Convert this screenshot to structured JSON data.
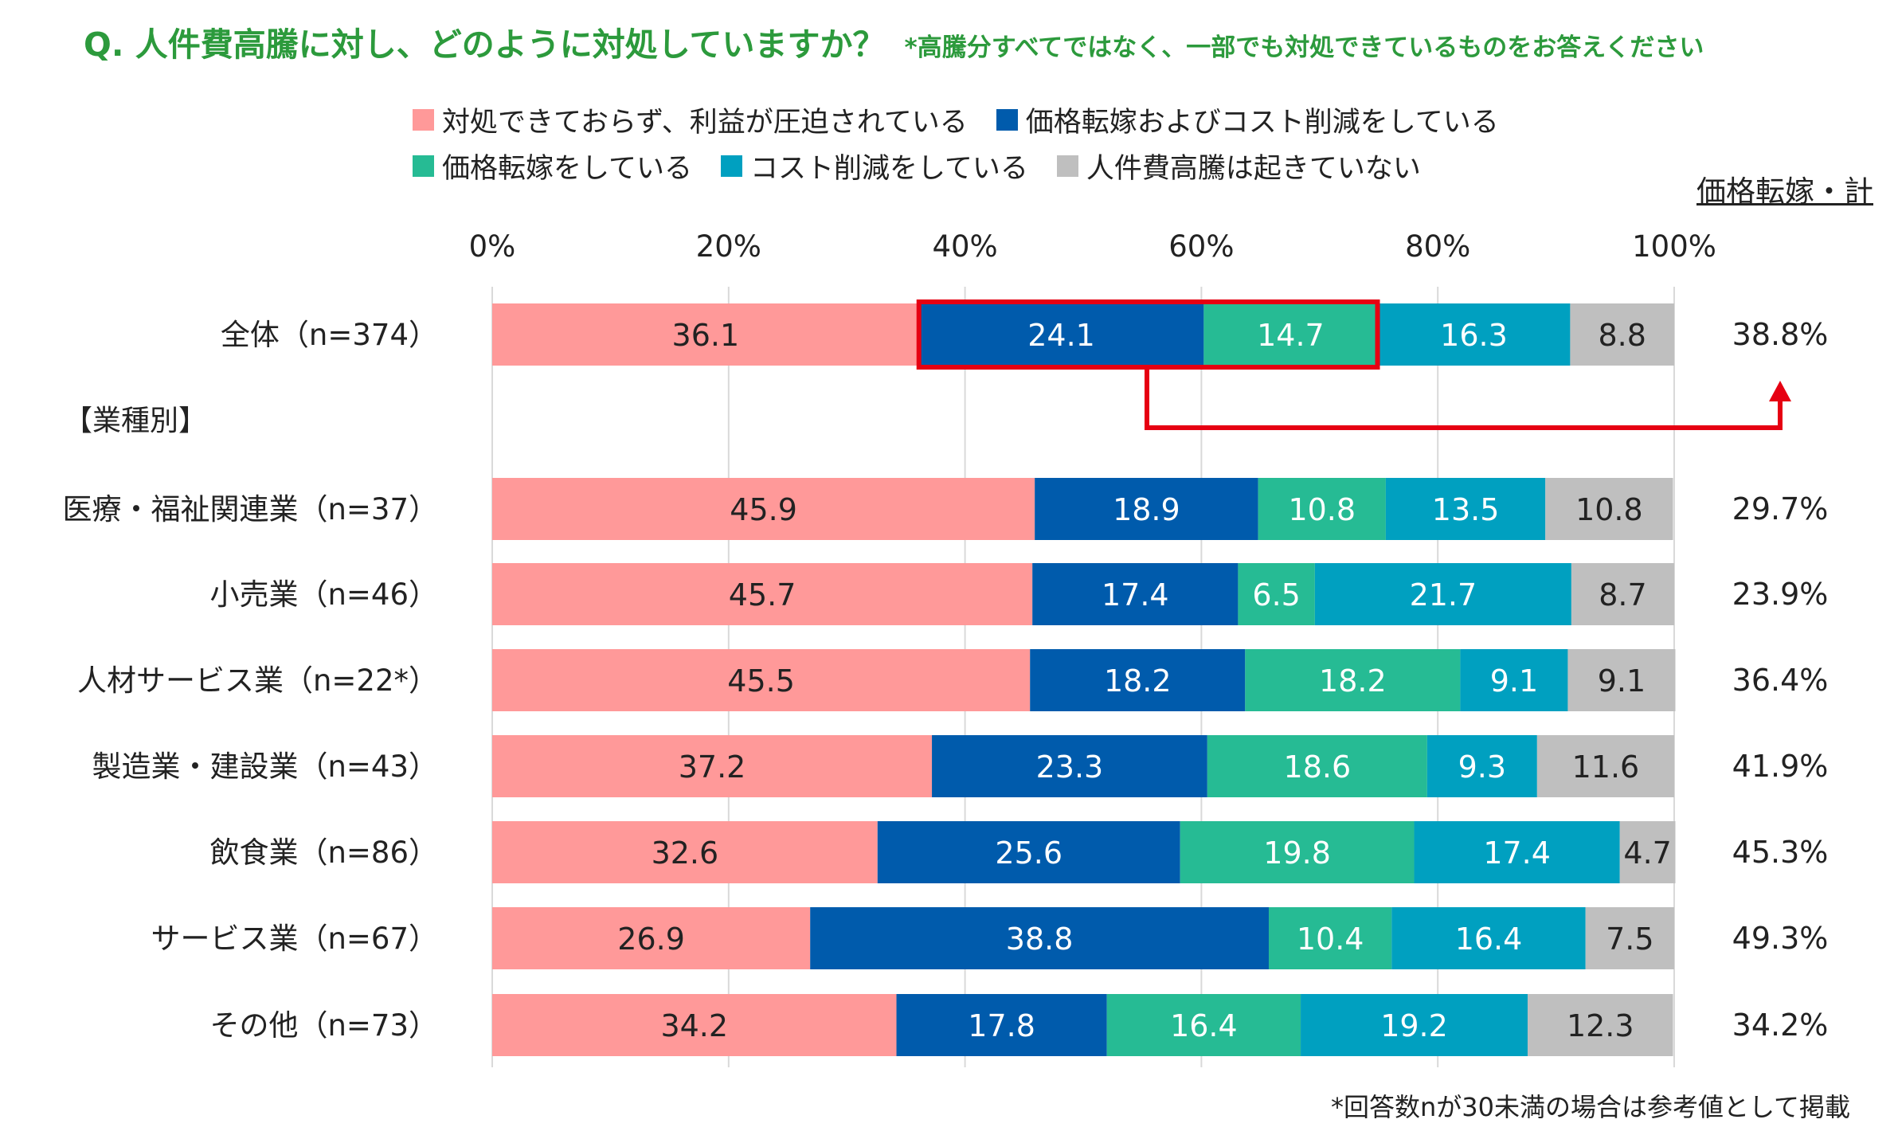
{
  "header": {
    "question": "Q. 人件費高騰に対し、どのように対処していますか？",
    "note": "*高騰分すべてではなく、一部でも対処できているものをお答えください"
  },
  "legend": [
    {
      "label": "対処できておらず、利益が圧迫されている",
      "color": "#ff9999"
    },
    {
      "label": "価格転嫁およびコスト削減をしている",
      "color": "#005bac"
    },
    {
      "label": "価格転嫁をしている",
      "color": "#26bb94"
    },
    {
      "label": "コスト削減をしている",
      "color": "#00a0c0"
    },
    {
      "label": "人件費高騰は起きていない",
      "color": "#bfbfbf"
    }
  ],
  "total_header": "価格転嫁・計",
  "section_label": "【業種別】",
  "footnote": "*回答数nが30未満の場合は参考値として掲載",
  "chart_data": {
    "type": "bar",
    "orientation": "horizontal",
    "stacked": true,
    "xlim": [
      0,
      100
    ],
    "ticks": [
      "0%",
      "20%",
      "40%",
      "60%",
      "80%",
      "100%"
    ],
    "grid": true,
    "legend_position": "top",
    "categories": [
      "全体（n=374）",
      "医療・福祉関連業（n=37）",
      "小売業（n=46）",
      "人材サービス業（n=22*）",
      "製造業・建設業（n=43）",
      "飲食業（n=86）",
      "サービス業（n=67）",
      "その他（n=73）"
    ],
    "series": [
      {
        "name": "対処できておらず、利益が圧迫されている",
        "values": [
          "36.1",
          "45.9",
          "45.7",
          "45.5",
          "37.2",
          "32.6",
          "26.9",
          "34.2"
        ]
      },
      {
        "name": "価格転嫁およびコスト削減をしている",
        "values": [
          "24.1",
          "18.9",
          "17.4",
          "18.2",
          "23.3",
          "25.6",
          "38.8",
          "17.8"
        ]
      },
      {
        "name": "価格転嫁をしている",
        "values": [
          "14.7",
          "10.8",
          "6.5",
          "18.2",
          "18.6",
          "19.8",
          "10.4",
          "16.4"
        ]
      },
      {
        "name": "コスト削減をしている",
        "values": [
          "16.3",
          "13.5",
          "21.7",
          "9.1",
          "9.3",
          "17.4",
          "16.4",
          "19.2"
        ]
      },
      {
        "name": "人件費高騰は起きていない",
        "values": [
          "8.8",
          "10.8",
          "8.7",
          "9.1",
          "11.6",
          "4.7",
          "7.5",
          "12.3"
        ]
      }
    ],
    "totals": [
      "38.8%",
      "29.7%",
      "23.9%",
      "36.4%",
      "41.9%",
      "45.3%",
      "49.3%",
      "34.2%"
    ],
    "highlight": {
      "row": 0,
      "series": [
        1,
        2
      ],
      "color": "#e60012"
    }
  }
}
